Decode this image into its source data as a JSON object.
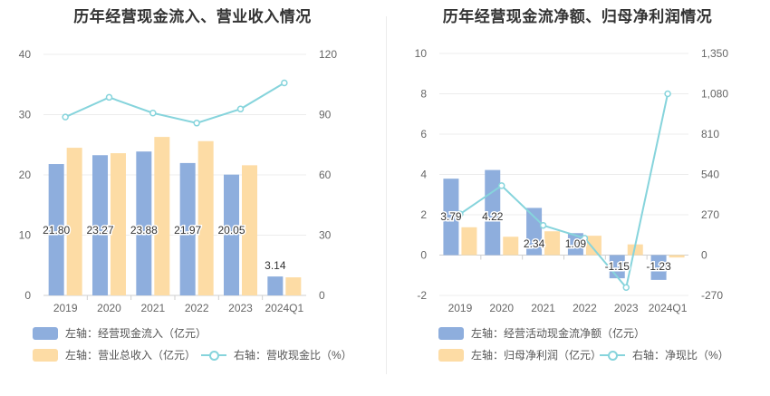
{
  "colors": {
    "bar1": "#8eaedd",
    "bar2": "#fddca5",
    "line": "#86d4dc",
    "axis": "#cfcfcf",
    "grid": "#ececec",
    "tick": "#666666",
    "label": "#333333"
  },
  "chart_data": [
    {
      "type": "bar",
      "title": "历年经营现金流入、营业收入情况",
      "categories": [
        "2019",
        "2020",
        "2021",
        "2022",
        "2023",
        "2024Q1"
      ],
      "series": [
        {
          "name": "左轴：经营现金流入（亿元）",
          "axis": "left",
          "kind": "bar",
          "values": [
            21.8,
            23.27,
            23.88,
            21.97,
            20.05,
            3.14
          ],
          "labels": [
            "21.80",
            "23.27",
            "23.88",
            "21.97",
            "20.05",
            "3.14"
          ]
        },
        {
          "name": "左轴：营业总收入（亿元）",
          "axis": "left",
          "kind": "bar",
          "values": [
            24.5,
            23.6,
            26.3,
            25.6,
            21.6,
            3.0
          ]
        },
        {
          "name": "右轴：营收现金比（%）",
          "axis": "right",
          "kind": "line",
          "values": [
            88.8,
            98.6,
            90.8,
            85.8,
            92.8,
            105.8
          ]
        }
      ],
      "left_axis": {
        "min": 0,
        "max": 40,
        "ticks": [
          "0",
          "10",
          "20",
          "30",
          "40"
        ]
      },
      "right_axis": {
        "min": 0,
        "max": 120,
        "ticks": [
          "0",
          "30",
          "60",
          "90",
          "120"
        ]
      }
    },
    {
      "type": "bar",
      "title": "历年经营现金流净额、归母净利润情况",
      "categories": [
        "2019",
        "2020",
        "2021",
        "2022",
        "2023",
        "2024Q1"
      ],
      "series": [
        {
          "name": "左轴：经营活动现金流净额（亿元）",
          "axis": "left",
          "kind": "bar",
          "values": [
            3.79,
            4.22,
            2.34,
            1.09,
            -1.15,
            -1.23
          ],
          "labels": [
            "3.79",
            "4.22",
            "2.34",
            "1.09",
            "-1.15",
            "-1.23"
          ]
        },
        {
          "name": "左轴：归母净利润（亿元）",
          "axis": "left",
          "kind": "bar",
          "values": [
            1.38,
            0.91,
            1.18,
            0.96,
            0.53,
            -0.12
          ]
        },
        {
          "name": "右轴：净现比（%）",
          "axis": "right",
          "kind": "line",
          "values": [
            275,
            465,
            199,
            113,
            -217,
            1080
          ]
        }
      ],
      "left_axis": {
        "min": -2,
        "max": 10,
        "ticks": [
          "-2",
          "0",
          "2",
          "4",
          "6",
          "8",
          "10"
        ]
      },
      "right_axis": {
        "min": -270,
        "max": 1350,
        "ticks": [
          "-270",
          "0",
          "270",
          "540",
          "810",
          "1,080",
          "1,350"
        ]
      }
    }
  ]
}
